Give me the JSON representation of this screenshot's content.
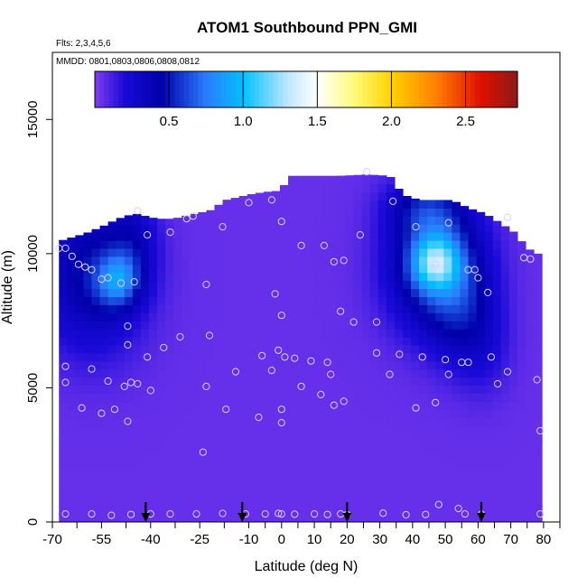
{
  "chart_data": {
    "type": "heatmap",
    "title": "ATOM1 Southbound PPN_GMI",
    "flights_note": "Flts: 2,3,4,5,6",
    "dates_note": "MMDD: 0801,0803,0806,0808,0812",
    "xlabel": "Latitude (deg N)",
    "ylabel": "Altitude (m)",
    "xlim": [
      -70,
      85
    ],
    "ylim": [
      0,
      17500
    ],
    "x_ticks": [
      -70,
      -55,
      -40,
      -25,
      -10,
      0,
      10,
      20,
      30,
      40,
      50,
      60,
      70,
      80
    ],
    "x_ticklabels": [
      "-70",
      "-55",
      "-40",
      "-25",
      "-10",
      "0",
      "10",
      "20",
      "30",
      "40",
      "50",
      "60",
      "70",
      "80"
    ],
    "x_minor_ticks": [
      -62.5,
      -47.5,
      -32.5,
      -17.5,
      -5,
      5,
      15,
      25,
      35,
      45,
      55,
      65,
      75,
      85
    ],
    "y_ticks": [
      0,
      5000,
      10000,
      15000
    ],
    "y_ticklabels": [
      "0",
      "5000",
      "10000",
      "15000"
    ],
    "colorbar": {
      "min": 0.0,
      "max": 2.85,
      "ticks": [
        0.5,
        1.0,
        1.5,
        2.0,
        2.5
      ],
      "ticklabels": [
        "0.5",
        "1.0",
        "1.5",
        "2.0",
        "2.5"
      ],
      "stops": [
        {
          "v": 0.0,
          "c": "#7f3cf0"
        },
        {
          "v": 0.2,
          "c": "#1a0ad8"
        },
        {
          "v": 0.45,
          "c": "#0000aa"
        },
        {
          "v": 0.75,
          "c": "#2a7cff"
        },
        {
          "v": 1.0,
          "c": "#00c0ff"
        },
        {
          "v": 1.3,
          "c": "#bfe6ff"
        },
        {
          "v": 1.5,
          "c": "#ffffff"
        },
        {
          "v": 1.75,
          "c": "#fffb7a"
        },
        {
          "v": 2.0,
          "c": "#ffd200"
        },
        {
          "v": 2.3,
          "c": "#ff8000"
        },
        {
          "v": 2.6,
          "c": "#e01000"
        },
        {
          "v": 2.85,
          "c": "#8b1a1a"
        }
      ]
    },
    "background_value": 0.05,
    "profile_latitudes": [
      -41.5,
      -12,
      20,
      61
    ],
    "coverage_top": [
      {
        "lat": -67,
        "alt": 10500
      },
      {
        "lat": -60,
        "alt": 10750
      },
      {
        "lat": -55,
        "alt": 11000
      },
      {
        "lat": -50,
        "alt": 11300
      },
      {
        "lat": -45,
        "alt": 11500
      },
      {
        "lat": -38,
        "alt": 11300
      },
      {
        "lat": -33,
        "alt": 11300
      },
      {
        "lat": -28,
        "alt": 11450
      },
      {
        "lat": -22,
        "alt": 11600
      },
      {
        "lat": -17,
        "alt": 12000
      },
      {
        "lat": -10,
        "alt": 12200
      },
      {
        "lat": -5,
        "alt": 12300
      },
      {
        "lat": 0,
        "alt": 12350
      },
      {
        "lat": 2,
        "alt": 12900
      },
      {
        "lat": 10,
        "alt": 12900
      },
      {
        "lat": 18,
        "alt": 12900
      },
      {
        "lat": 26,
        "alt": 12950
      },
      {
        "lat": 33,
        "alt": 12900
      },
      {
        "lat": 37,
        "alt": 12200
      },
      {
        "lat": 42,
        "alt": 12000
      },
      {
        "lat": 46,
        "alt": 12000
      },
      {
        "lat": 52,
        "alt": 12000
      },
      {
        "lat": 57,
        "alt": 11700
      },
      {
        "lat": 62,
        "alt": 11500
      },
      {
        "lat": 66,
        "alt": 11200
      },
      {
        "lat": 71,
        "alt": 10800
      },
      {
        "lat": 75,
        "alt": 10200
      },
      {
        "lat": 78,
        "alt": 10000
      }
    ],
    "coverage_xrange": [
      -68,
      79
    ],
    "blobs": [
      {
        "lat": -58,
        "alt": 9300,
        "slat": 11,
        "salt": 2000,
        "amp": 0.42
      },
      {
        "lat": -50,
        "alt": 9000,
        "slat": 4.5,
        "salt": 700,
        "amp": 0.5
      },
      {
        "lat": -45,
        "alt": 10300,
        "slat": 5,
        "salt": 1200,
        "amp": 0.2
      },
      {
        "lat": 47,
        "alt": 9600,
        "slat": 10,
        "salt": 1700,
        "amp": 0.6
      },
      {
        "lat": 47,
        "alt": 9700,
        "slat": 5,
        "salt": 700,
        "amp": 0.65
      },
      {
        "lat": 55,
        "alt": 8000,
        "slat": 7,
        "salt": 1500,
        "amp": 0.25
      },
      {
        "lat": 44,
        "alt": 11700,
        "slat": 8,
        "salt": 700,
        "amp": 0.3
      },
      {
        "lat": 62,
        "alt": 6500,
        "slat": 6,
        "salt": 1300,
        "amp": 0.12
      }
    ],
    "sample_points": [
      [
        -68,
        10200
      ],
      [
        -66,
        10200
      ],
      [
        -64,
        9900
      ],
      [
        -62,
        9600
      ],
      [
        -60,
        9500
      ],
      [
        -58,
        9400
      ],
      [
        -55,
        9050
      ],
      [
        -53,
        9100
      ],
      [
        -49,
        8900
      ],
      [
        -45,
        8950
      ],
      [
        -44,
        11600
      ],
      [
        -41,
        10700
      ],
      [
        -34,
        10800
      ],
      [
        -29,
        11300
      ],
      [
        -27,
        11400
      ],
      [
        -18,
        11000
      ],
      [
        -10,
        11900
      ],
      [
        -3,
        12000
      ],
      [
        0,
        11200
      ],
      [
        6,
        10300
      ],
      [
        13,
        10300
      ],
      [
        16,
        9700
      ],
      [
        19,
        9750
      ],
      [
        24,
        10700
      ],
      [
        26,
        13050
      ],
      [
        34,
        11950
      ],
      [
        41,
        11000
      ],
      [
        47,
        9600
      ],
      [
        51,
        11150
      ],
      [
        57,
        9400
      ],
      [
        59,
        9400
      ],
      [
        60,
        9100
      ],
      [
        63,
        8550
      ],
      [
        69,
        11350
      ],
      [
        74,
        9850
      ],
      [
        76,
        9800
      ],
      [
        -23,
        8850
      ],
      [
        -2,
        8500
      ],
      [
        0,
        7700
      ],
      [
        18,
        7850
      ],
      [
        22,
        7450
      ],
      [
        29,
        7450
      ],
      [
        -47,
        7300
      ],
      [
        -31,
        6900
      ],
      [
        -47,
        6600
      ],
      [
        -36,
        6500
      ],
      [
        -22,
        6950
      ],
      [
        -41,
        6150
      ],
      [
        -6,
        6200
      ],
      [
        -1,
        6400
      ],
      [
        1,
        6150
      ],
      [
        4,
        6100
      ],
      [
        9,
        6000
      ],
      [
        14,
        5950
      ],
      [
        29,
        6300
      ],
      [
        36,
        6250
      ],
      [
        43,
        6150
      ],
      [
        50,
        6050
      ],
      [
        55,
        5950
      ],
      [
        57,
        5950
      ],
      [
        64,
        6150
      ],
      [
        69,
        5600
      ],
      [
        -66,
        5800
      ],
      [
        -66,
        5200
      ],
      [
        -58,
        5700
      ],
      [
        -53,
        5250
      ],
      [
        -48,
        5050
      ],
      [
        -46,
        5200
      ],
      [
        -44,
        5150
      ],
      [
        -40,
        4900
      ],
      [
        -23,
        5050
      ],
      [
        -14,
        5600
      ],
      [
        -3,
        5650
      ],
      [
        6,
        5050
      ],
      [
        12,
        4750
      ],
      [
        15,
        5500
      ],
      [
        16,
        4350
      ],
      [
        19,
        4500
      ],
      [
        33,
        5500
      ],
      [
        41,
        4250
      ],
      [
        47,
        4450
      ],
      [
        51,
        5500
      ],
      [
        66,
        5150
      ],
      [
        78,
        5300
      ],
      [
        -61,
        4250
      ],
      [
        -55,
        4050
      ],
      [
        -51,
        4200
      ],
      [
        -47,
        3750
      ],
      [
        -17,
        4200
      ],
      [
        -7,
        3900
      ],
      [
        0,
        4200
      ],
      [
        0,
        3700
      ],
      [
        79,
        3400
      ],
      [
        -24,
        2600
      ],
      [
        -66,
        300
      ],
      [
        -58,
        300
      ],
      [
        -52,
        250
      ],
      [
        -46,
        280
      ],
      [
        -40,
        300
      ],
      [
        -34,
        300
      ],
      [
        -26,
        300
      ],
      [
        -18,
        320
      ],
      [
        -11,
        300
      ],
      [
        -5,
        300
      ],
      [
        -1,
        320
      ],
      [
        0,
        300
      ],
      [
        4,
        290
      ],
      [
        10,
        300
      ],
      [
        14,
        280
      ],
      [
        18,
        300
      ],
      [
        20,
        280
      ],
      [
        31,
        330
      ],
      [
        38,
        270
      ],
      [
        44,
        280
      ],
      [
        48,
        650
      ],
      [
        54,
        500
      ],
      [
        56,
        300
      ],
      [
        61,
        290
      ],
      [
        79,
        300
      ]
    ]
  }
}
